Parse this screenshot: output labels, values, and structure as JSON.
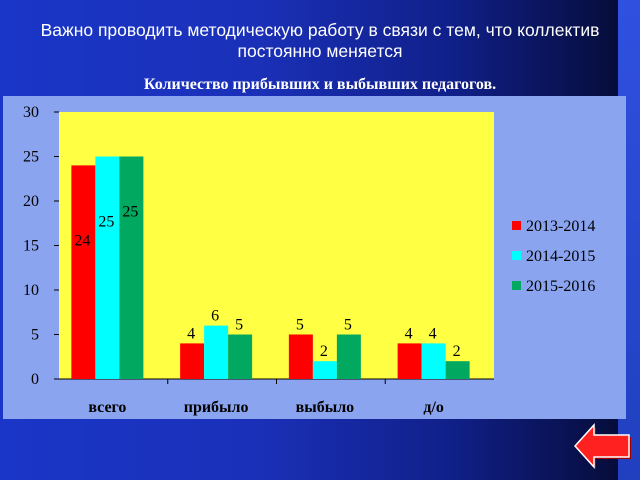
{
  "slide": {
    "title": "Важно проводить методическую работу в связи с тем, что коллектив  постоянно  меняется",
    "subtitle": "Количество прибывших и выбывших педагогов."
  },
  "chart_data": {
    "type": "bar",
    "categories": [
      "всего",
      "прибыло",
      "выбыло",
      "д/о"
    ],
    "series": [
      {
        "name": "2013-2014",
        "color": "#ff0000",
        "values": [
          24,
          4,
          5,
          4
        ]
      },
      {
        "name": "2014-2015",
        "color": "#00ffff",
        "values": [
          25,
          6,
          2,
          4
        ]
      },
      {
        "name": "2015-2016",
        "color": "#00a860",
        "values": [
          25,
          5,
          5,
          2
        ]
      }
    ],
    "ylim": [
      0,
      30
    ],
    "yticks": [
      0,
      5,
      10,
      15,
      20,
      25,
      30
    ],
    "legend": "right",
    "plot_background": "#ffff44"
  },
  "colors": {
    "back_button": "#ff2020"
  }
}
